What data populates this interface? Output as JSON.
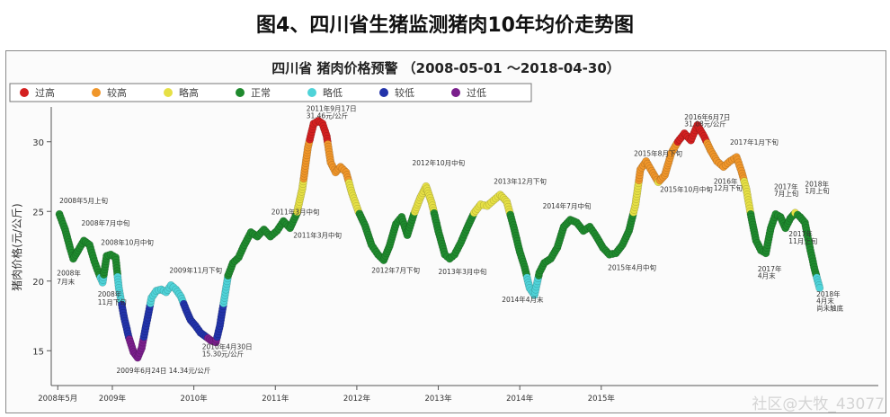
{
  "page": {
    "headline": "图4、四川省生猪监测猪肉10年均价走势图",
    "watermark": "社区@大牧_43077"
  },
  "chart_data": {
    "type": "scatter",
    "title": "四川省 猪肉价格预警 （2008-05-01 ～2018-04-30）",
    "ylabel": "猪肉价格(元/公斤)",
    "xlabel": "",
    "ylim": [
      12.5,
      32.5
    ],
    "xlim": [
      2008.25,
      2018.4
    ],
    "y_ticks": [
      15,
      20,
      25,
      30
    ],
    "x_ticks": [
      {
        "value": 2008.33,
        "label": "2008年5月"
      },
      {
        "value": 2009.0,
        "label": "2009年"
      },
      {
        "value": 2010.0,
        "label": "2010年"
      },
      {
        "value": 2011.0,
        "label": "2011年"
      },
      {
        "value": 2012.0,
        "label": "2012年"
      },
      {
        "value": 2013.0,
        "label": "2013年"
      },
      {
        "value": 2014.0,
        "label": "2014年"
      },
      {
        "value": 2015.0,
        "label": "2015年"
      }
    ],
    "grid": false,
    "legend_position": "top-left",
    "legend": [
      {
        "name": "过高",
        "color": "#d42020"
      },
      {
        "name": "较高",
        "color": "#f0962a"
      },
      {
        "name": "略高",
        "color": "#e6e045"
      },
      {
        "name": "正常",
        "color": "#1f8a2e"
      },
      {
        "name": "略低",
        "color": "#4fd3d8"
      },
      {
        "name": "较低",
        "color": "#2233aa"
      },
      {
        "name": "过低",
        "color": "#7a1f8c"
      }
    ],
    "series": [
      {
        "points": [
          [
            2008.35,
            24.8
          ],
          [
            2008.42,
            23.7
          ],
          [
            2008.48,
            22.4
          ],
          [
            2008.52,
            21.6
          ],
          [
            2008.58,
            22.2
          ],
          [
            2008.65,
            22.9
          ],
          [
            2008.72,
            22.6
          ],
          [
            2008.78,
            21.4
          ],
          [
            2008.83,
            20.6
          ],
          [
            2008.88,
            19.9
          ],
          [
            2008.93,
            21.8
          ],
          [
            2008.98,
            21.9
          ],
          [
            2009.04,
            21.7
          ],
          [
            2009.08,
            19.5
          ],
          [
            2009.14,
            17.5
          ],
          [
            2009.2,
            16.0
          ],
          [
            2009.26,
            14.9
          ],
          [
            2009.31,
            14.5
          ],
          [
            2009.36,
            15.2
          ],
          [
            2009.42,
            17.0
          ],
          [
            2009.48,
            18.8
          ],
          [
            2009.54,
            19.3
          ],
          [
            2009.6,
            19.4
          ],
          [
            2009.66,
            19.2
          ],
          [
            2009.72,
            19.7
          ],
          [
            2009.78,
            19.4
          ],
          [
            2009.84,
            18.9
          ],
          [
            2009.9,
            18.0
          ],
          [
            2009.96,
            17.2
          ],
          [
            2010.02,
            16.8
          ],
          [
            2010.08,
            16.3
          ],
          [
            2010.15,
            16.0
          ],
          [
            2010.22,
            15.7
          ],
          [
            2010.27,
            15.6
          ],
          [
            2010.32,
            16.8
          ],
          [
            2010.37,
            18.6
          ],
          [
            2010.42,
            20.4
          ],
          [
            2010.48,
            21.3
          ],
          [
            2010.55,
            21.7
          ],
          [
            2010.62,
            22.6
          ],
          [
            2010.7,
            23.5
          ],
          [
            2010.78,
            23.2
          ],
          [
            2010.86,
            23.7
          ],
          [
            2010.94,
            23.2
          ],
          [
            2011.02,
            23.6
          ],
          [
            2011.1,
            24.3
          ],
          [
            2011.18,
            23.8
          ],
          [
            2011.26,
            24.8
          ],
          [
            2011.33,
            26.6
          ],
          [
            2011.4,
            29.6
          ],
          [
            2011.47,
            31.3
          ],
          [
            2011.53,
            31.5
          ],
          [
            2011.58,
            31.3
          ],
          [
            2011.63,
            30.4
          ],
          [
            2011.68,
            28.5
          ],
          [
            2011.74,
            27.8
          ],
          [
            2011.8,
            28.2
          ],
          [
            2011.87,
            27.8
          ],
          [
            2011.94,
            26.3
          ],
          [
            2012.02,
            25.0
          ],
          [
            2012.1,
            24.0
          ],
          [
            2012.18,
            22.6
          ],
          [
            2012.26,
            21.9
          ],
          [
            2012.33,
            21.5
          ],
          [
            2012.4,
            22.5
          ],
          [
            2012.48,
            24.1
          ],
          [
            2012.55,
            24.6
          ],
          [
            2012.62,
            23.3
          ],
          [
            2012.7,
            24.8
          ],
          [
            2012.78,
            26.0
          ],
          [
            2012.85,
            26.8
          ],
          [
            2012.92,
            25.6
          ],
          [
            2013.0,
            23.6
          ],
          [
            2013.08,
            21.9
          ],
          [
            2013.14,
            21.6
          ],
          [
            2013.2,
            21.9
          ],
          [
            2013.28,
            22.8
          ],
          [
            2013.36,
            23.9
          ],
          [
            2013.44,
            24.9
          ],
          [
            2013.52,
            25.5
          ],
          [
            2013.6,
            25.4
          ],
          [
            2013.68,
            25.8
          ],
          [
            2013.76,
            26.2
          ],
          [
            2013.84,
            25.7
          ],
          [
            2013.92,
            24.0
          ],
          [
            2014.0,
            22.1
          ],
          [
            2014.06,
            21.0
          ],
          [
            2014.12,
            19.5
          ],
          [
            2014.18,
            19.0
          ],
          [
            2014.24,
            20.6
          ],
          [
            2014.3,
            21.3
          ],
          [
            2014.38,
            21.6
          ],
          [
            2014.46,
            22.4
          ],
          [
            2014.54,
            23.9
          ],
          [
            2014.62,
            24.4
          ],
          [
            2014.7,
            24.2
          ],
          [
            2014.78,
            23.6
          ],
          [
            2014.86,
            23.9
          ],
          [
            2014.94,
            23.2
          ],
          [
            2015.02,
            22.4
          ],
          [
            2015.1,
            21.9
          ],
          [
            2015.18,
            22.0
          ],
          [
            2015.26,
            22.6
          ],
          [
            2015.34,
            23.6
          ],
          [
            2015.42,
            25.5
          ],
          [
            2015.48,
            28.0
          ],
          [
            2015.55,
            28.6
          ],
          [
            2015.62,
            27.9
          ],
          [
            2015.7,
            27.1
          ],
          [
            2015.78,
            27.6
          ],
          [
            2015.86,
            29.2
          ],
          [
            2015.94,
            30.0
          ],
          [
            2016.02,
            30.6
          ],
          [
            2016.1,
            30.1
          ],
          [
            2016.18,
            31.2
          ],
          [
            2016.26,
            30.4
          ],
          [
            2016.34,
            29.4
          ],
          [
            2016.42,
            28.6
          ],
          [
            2016.5,
            28.2
          ],
          [
            2016.58,
            28.6
          ],
          [
            2016.66,
            28.9
          ],
          [
            2016.72,
            27.9
          ],
          [
            2016.78,
            26.6
          ],
          [
            2016.84,
            24.6
          ],
          [
            2016.9,
            22.9
          ],
          [
            2016.96,
            22.2
          ],
          [
            2017.02,
            22.0
          ],
          [
            2017.08,
            23.8
          ],
          [
            2017.14,
            24.8
          ],
          [
            2017.2,
            24.6
          ],
          [
            2017.26,
            23.8
          ],
          [
            2017.32,
            24.5
          ],
          [
            2017.38,
            24.9
          ],
          [
            2017.44,
            24.6
          ],
          [
            2017.5,
            24.2
          ],
          [
            2017.56,
            22.4
          ],
          [
            2017.62,
            20.8
          ],
          [
            2017.68,
            19.5
          ]
        ]
      }
    ],
    "annotations": [
      {
        "x": 2008.35,
        "y": 25.6,
        "text": "2008年5月上旬"
      },
      {
        "x": 2008.62,
        "y": 24.0,
        "text": "2008年7月中旬"
      },
      {
        "x": 2008.32,
        "y": 20.4,
        "text": "2008年"
      },
      {
        "x": 2008.32,
        "y": 19.8,
        "text": "7月末"
      },
      {
        "x": 2008.86,
        "y": 22.6,
        "text": "2008年10月中旬"
      },
      {
        "x": 2008.82,
        "y": 18.9,
        "text": "2008年"
      },
      {
        "x": 2008.82,
        "y": 18.3,
        "text": "11月下旬"
      },
      {
        "x": 2009.05,
        "y": 13.4,
        "text": "2009年6月24日 14.34元/公斤"
      },
      {
        "x": 2009.7,
        "y": 20.6,
        "text": "2009年11月下旬"
      },
      {
        "x": 2010.1,
        "y": 15.1,
        "text": "2010年4月30日"
      },
      {
        "x": 2010.1,
        "y": 14.6,
        "text": "15.30元/公斤"
      },
      {
        "x": 2010.95,
        "y": 24.8,
        "text": "2011年3月中旬"
      },
      {
        "x": 2011.22,
        "y": 23.1,
        "text": "2011年3月中旬"
      },
      {
        "x": 2011.38,
        "y": 32.2,
        "text": "2011年9月17日"
      },
      {
        "x": 2011.38,
        "y": 31.7,
        "text": "31.46元/公斤"
      },
      {
        "x": 2012.18,
        "y": 20.6,
        "text": "2012年7月下旬"
      },
      {
        "x": 2012.68,
        "y": 28.3,
        "text": "2012年10月中旬"
      },
      {
        "x": 2013.0,
        "y": 20.5,
        "text": "2013年3月中旬"
      },
      {
        "x": 2013.68,
        "y": 27.0,
        "text": "2013年12月下旬"
      },
      {
        "x": 2013.78,
        "y": 18.5,
        "text": "2014年4月末"
      },
      {
        "x": 2014.28,
        "y": 25.2,
        "text": "2014年7月中旬"
      },
      {
        "x": 2015.08,
        "y": 20.8,
        "text": "2015年4月中旬"
      },
      {
        "x": 2015.4,
        "y": 29.0,
        "text": "2015年8月下旬"
      },
      {
        "x": 2015.72,
        "y": 26.4,
        "text": "2015年10月中旬"
      },
      {
        "x": 2016.02,
        "y": 31.6,
        "text": "2016年6月7日"
      },
      {
        "x": 2016.02,
        "y": 31.1,
        "text": "31.08元/公斤"
      },
      {
        "x": 2016.58,
        "y": 29.8,
        "text": "2017年1月下旬"
      },
      {
        "x": 2016.38,
        "y": 27.0,
        "text": "2016年"
      },
      {
        "x": 2016.38,
        "y": 26.5,
        "text": "12月下旬"
      },
      {
        "x": 2016.92,
        "y": 20.7,
        "text": "2017年"
      },
      {
        "x": 2016.92,
        "y": 20.2,
        "text": "4月末"
      },
      {
        "x": 2017.12,
        "y": 26.6,
        "text": "2017年"
      },
      {
        "x": 2017.12,
        "y": 26.1,
        "text": "7月上旬"
      },
      {
        "x": 2017.3,
        "y": 23.2,
        "text": "2017年"
      },
      {
        "x": 2017.3,
        "y": 22.7,
        "text": "11月上旬"
      },
      {
        "x": 2017.5,
        "y": 26.8,
        "text": "2018年"
      },
      {
        "x": 2017.5,
        "y": 26.3,
        "text": "1月上旬"
      },
      {
        "x": 2017.64,
        "y": 18.9,
        "text": "2018年"
      },
      {
        "x": 2017.64,
        "y": 18.4,
        "text": "4月末"
      },
      {
        "x": 2017.64,
        "y": 17.9,
        "text": "尚未触底"
      }
    ]
  }
}
